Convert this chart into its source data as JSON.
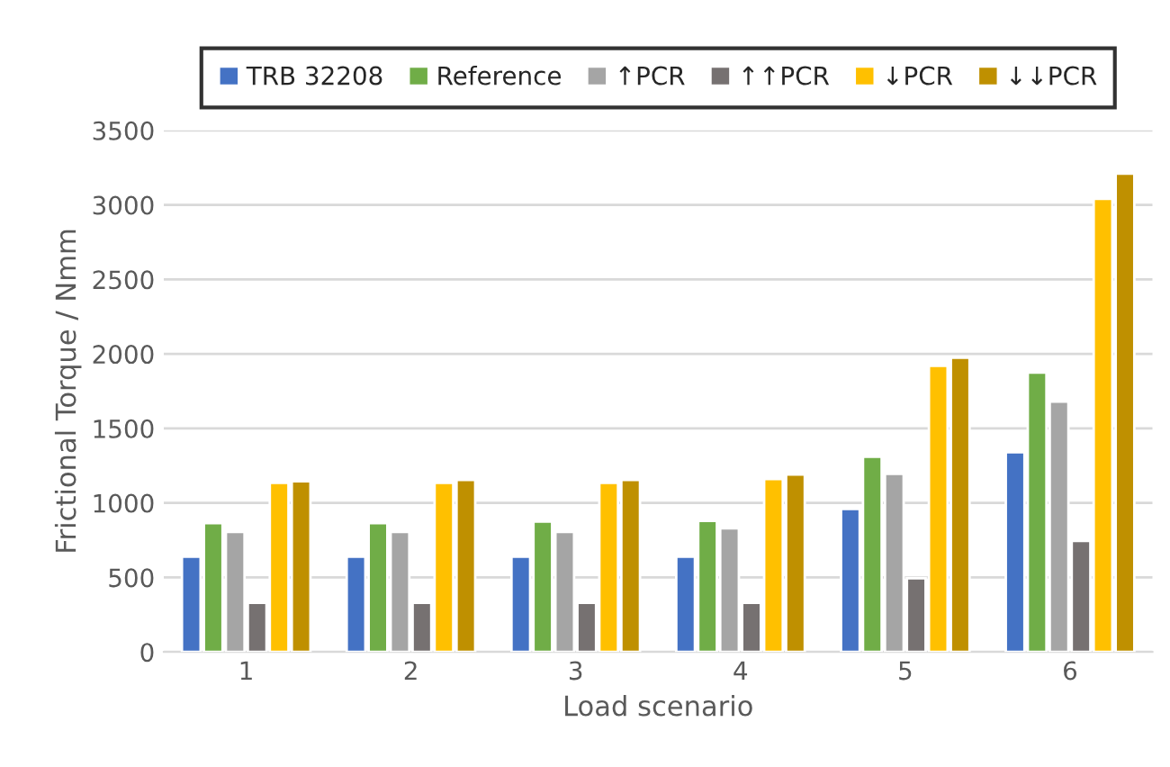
{
  "chart_data": {
    "type": "bar",
    "xlabel": "Load scenario",
    "ylabel": "Frictional Torque / Nmm",
    "categories": [
      "1",
      "2",
      "3",
      "4",
      "5",
      "6"
    ],
    "series": [
      {
        "name": "TRB 32208",
        "color": "#4472c4",
        "values": [
          640,
          640,
          640,
          640,
          960,
          1340
        ]
      },
      {
        "name": "Reference",
        "color": "#70ad47",
        "values": [
          865,
          865,
          875,
          880,
          1310,
          1875
        ]
      },
      {
        "name": "↑PCR",
        "color": "#a5a5a5",
        "values": [
          805,
          805,
          805,
          830,
          1195,
          1680
        ]
      },
      {
        "name": "↑↑PCR",
        "color": "#767171",
        "values": [
          330,
          330,
          330,
          330,
          495,
          745
        ]
      },
      {
        "name": "↓PCR",
        "color": "#ffc000",
        "values": [
          1135,
          1135,
          1135,
          1160,
          1920,
          3040
        ]
      },
      {
        "name": "↓↓PCR",
        "color": "#bf9000",
        "values": [
          1145,
          1155,
          1155,
          1190,
          1975,
          3210
        ]
      }
    ],
    "ylim": [
      0,
      3500
    ],
    "yticks": [
      0,
      500,
      1000,
      1500,
      2000,
      2500,
      3000,
      3500
    ],
    "grid": "y",
    "legend": "top"
  }
}
